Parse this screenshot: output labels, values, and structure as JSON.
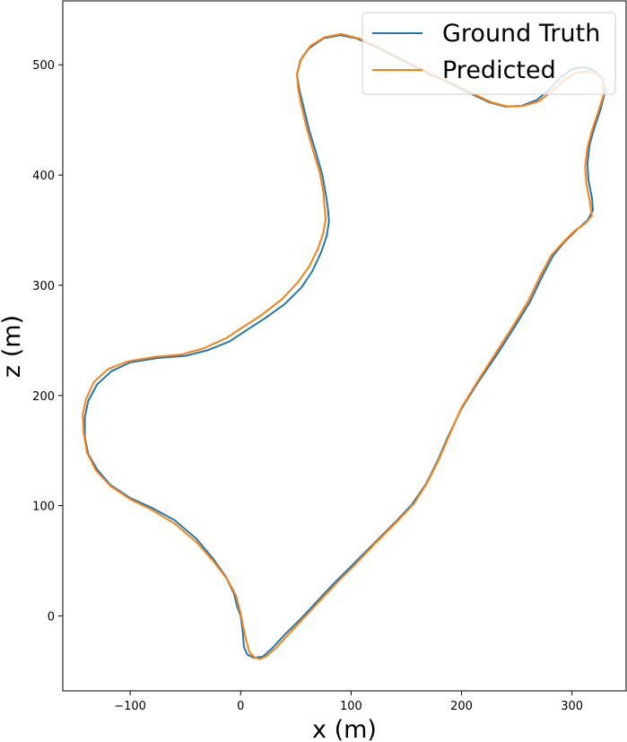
{
  "chart_data": {
    "type": "line",
    "xlabel": "x (m)",
    "ylabel": "z (m)",
    "xlim": [
      -161,
      349
    ],
    "ylim": [
      -68,
      558
    ],
    "xticks": [
      -100,
      0,
      100,
      200,
      300
    ],
    "yticks": [
      0,
      100,
      200,
      300,
      400,
      500
    ],
    "grid": false,
    "legend_position": "top-right",
    "series": [
      {
        "name": "Ground Truth",
        "color": "#1f77b4",
        "points": [
          [
            -3,
            8
          ],
          [
            0,
            0
          ],
          [
            2,
            -15
          ],
          [
            3,
            -28
          ],
          [
            6,
            -35
          ],
          [
            12,
            -38
          ],
          [
            20,
            -37
          ],
          [
            28,
            -30
          ],
          [
            40,
            -17
          ],
          [
            55,
            -2
          ],
          [
            70,
            14
          ],
          [
            85,
            30
          ],
          [
            100,
            45
          ],
          [
            120,
            65
          ],
          [
            140,
            85
          ],
          [
            155,
            101
          ],
          [
            168,
            120
          ],
          [
            178,
            140
          ],
          [
            188,
            163
          ],
          [
            200,
            188
          ],
          [
            215,
            212
          ],
          [
            232,
            237
          ],
          [
            248,
            262
          ],
          [
            262,
            285
          ],
          [
            273,
            308
          ],
          [
            283,
            327
          ],
          [
            293,
            339
          ],
          [
            304,
            350
          ],
          [
            314,
            359
          ],
          [
            319,
            368
          ],
          [
            318,
            380
          ],
          [
            315,
            395
          ],
          [
            314,
            410
          ],
          [
            316,
            428
          ],
          [
            320,
            442
          ],
          [
            326,
            460
          ],
          [
            330,
            476
          ],
          [
            328,
            487
          ],
          [
            320,
            495
          ],
          [
            310,
            498
          ],
          [
            300,
            496
          ],
          [
            289,
            488
          ],
          [
            280,
            478
          ],
          [
            268,
            468
          ],
          [
            255,
            463
          ],
          [
            240,
            462
          ],
          [
            225,
            466
          ],
          [
            208,
            474
          ],
          [
            190,
            483
          ],
          [
            170,
            492
          ],
          [
            150,
            502
          ],
          [
            125,
            515
          ],
          [
            105,
            524
          ],
          [
            90,
            527
          ],
          [
            75,
            524
          ],
          [
            62,
            515
          ],
          [
            54,
            504
          ],
          [
            51,
            491
          ],
          [
            53,
            478
          ],
          [
            57,
            462
          ],
          [
            62,
            441
          ],
          [
            68,
            421
          ],
          [
            74,
            400
          ],
          [
            77,
            383
          ],
          [
            79,
            370
          ],
          [
            80,
            358
          ],
          [
            78,
            345
          ],
          [
            73,
            330
          ],
          [
            65,
            313
          ],
          [
            55,
            298
          ],
          [
            40,
            283
          ],
          [
            22,
            270
          ],
          [
            5,
            259
          ],
          [
            -10,
            249
          ],
          [
            -30,
            241
          ],
          [
            -50,
            236
          ],
          [
            -75,
            234
          ],
          [
            -100,
            230
          ],
          [
            -117,
            222
          ],
          [
            -130,
            210
          ],
          [
            -138,
            195
          ],
          [
            -141,
            180
          ],
          [
            -141,
            162
          ],
          [
            -138,
            147
          ],
          [
            -130,
            133
          ],
          [
            -118,
            119
          ],
          [
            -100,
            107
          ],
          [
            -80,
            98
          ],
          [
            -60,
            87
          ],
          [
            -40,
            70
          ],
          [
            -25,
            52
          ],
          [
            -13,
            35
          ],
          [
            -6,
            20
          ],
          [
            -3,
            8
          ]
        ]
      },
      {
        "name": "Predicted",
        "color": "#ff7f0e",
        "points": [
          [
            0,
            2
          ],
          [
            2,
            -8
          ],
          [
            5,
            -22
          ],
          [
            8,
            -33
          ],
          [
            13,
            -38
          ],
          [
            18,
            -39
          ],
          [
            24,
            -36
          ],
          [
            32,
            -29
          ],
          [
            44,
            -16
          ],
          [
            58,
            -1
          ],
          [
            73,
            15
          ],
          [
            88,
            31
          ],
          [
            103,
            46
          ],
          [
            122,
            66
          ],
          [
            142,
            86
          ],
          [
            157,
            102
          ],
          [
            169,
            121
          ],
          [
            179,
            141
          ],
          [
            189,
            164
          ],
          [
            200,
            189
          ],
          [
            214,
            212
          ],
          [
            230,
            237
          ],
          [
            246,
            262
          ],
          [
            260,
            285
          ],
          [
            271,
            308
          ],
          [
            281,
            327
          ],
          [
            291,
            338
          ],
          [
            302,
            349
          ],
          [
            312,
            356
          ],
          [
            318,
            363
          ],
          [
            316,
            377
          ],
          [
            313,
            392
          ],
          [
            312,
            408
          ],
          [
            314,
            425
          ],
          [
            318,
            440
          ],
          [
            324,
            458
          ],
          [
            329,
            474
          ],
          [
            328,
            487
          ],
          [
            322,
            492
          ],
          [
            313,
            494
          ],
          [
            304,
            493
          ],
          [
            293,
            486
          ],
          [
            283,
            477
          ],
          [
            270,
            467
          ],
          [
            257,
            463
          ],
          [
            242,
            462
          ],
          [
            227,
            466
          ],
          [
            210,
            474
          ],
          [
            192,
            483
          ],
          [
            172,
            492
          ],
          [
            152,
            502
          ],
          [
            127,
            515
          ],
          [
            107,
            524
          ],
          [
            91,
            528
          ],
          [
            76,
            525
          ],
          [
            63,
            517
          ],
          [
            55,
            506
          ],
          [
            51,
            492
          ],
          [
            52,
            479
          ],
          [
            55,
            463
          ],
          [
            60,
            442
          ],
          [
            66,
            421
          ],
          [
            72,
            401
          ],
          [
            75,
            384
          ],
          [
            76,
            371
          ],
          [
            77,
            360
          ],
          [
            75,
            348
          ],
          [
            70,
            333
          ],
          [
            62,
            317
          ],
          [
            52,
            303
          ],
          [
            37,
            287
          ],
          [
            19,
            273
          ],
          [
            2,
            262
          ],
          [
            -13,
            252
          ],
          [
            -33,
            243
          ],
          [
            -54,
            237
          ],
          [
            -78,
            235
          ],
          [
            -102,
            231
          ],
          [
            -120,
            224
          ],
          [
            -133,
            212
          ],
          [
            -140,
            197
          ],
          [
            -143,
            182
          ],
          [
            -142,
            165
          ],
          [
            -139,
            148
          ],
          [
            -131,
            132
          ],
          [
            -118,
            118
          ],
          [
            -100,
            106
          ],
          [
            -80,
            96
          ],
          [
            -60,
            84
          ],
          [
            -40,
            67
          ],
          [
            -25,
            50
          ],
          [
            -12,
            33
          ],
          [
            -4,
            18
          ],
          [
            0,
            2
          ]
        ]
      }
    ]
  }
}
